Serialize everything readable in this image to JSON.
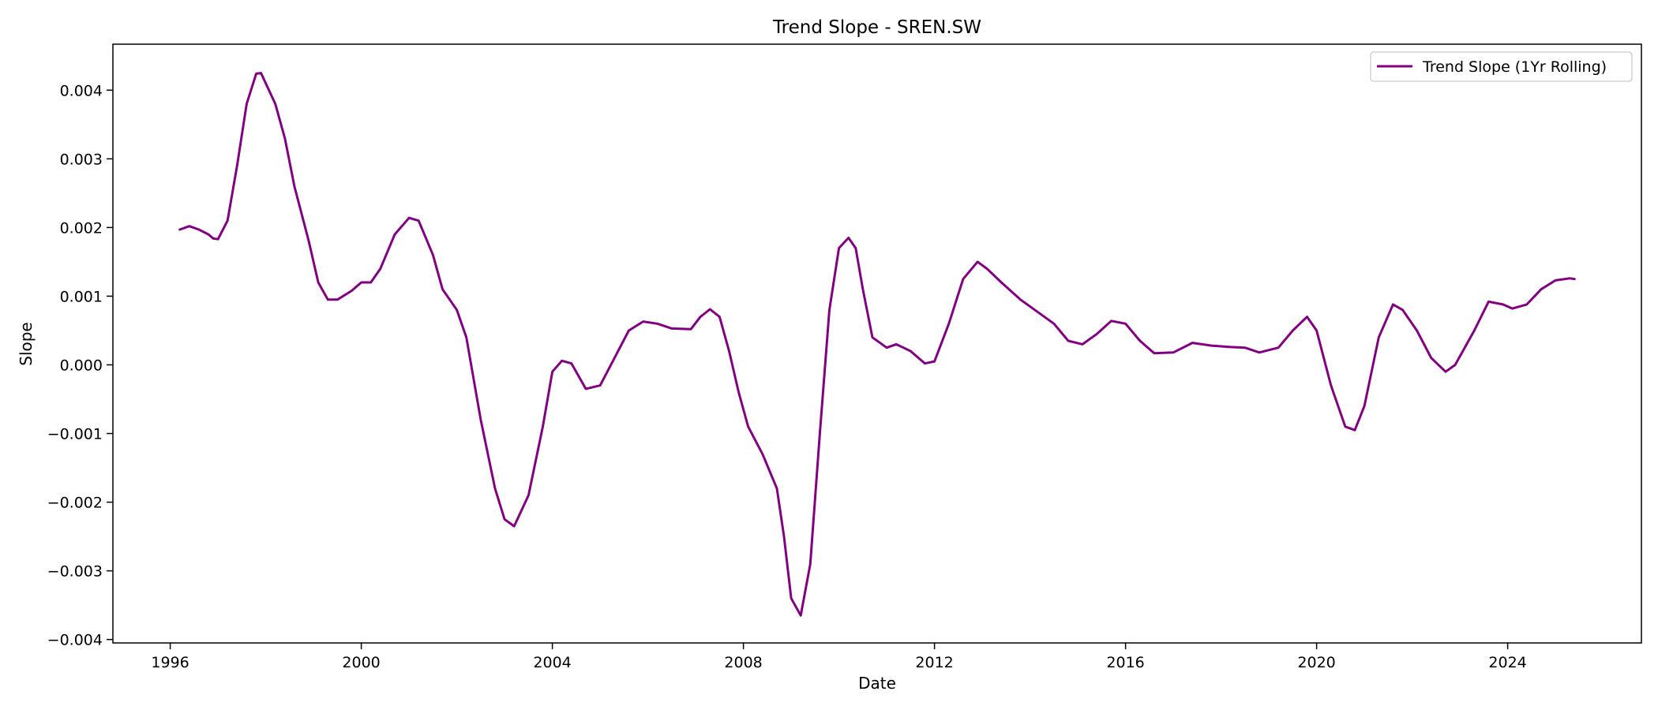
{
  "chart_data": {
    "type": "line",
    "title": "Trend Slope - SREN.SW",
    "xlabel": "Date",
    "ylabel": "Slope",
    "xlim": [
      1994.8,
      2026.8
    ],
    "ylim": [
      -0.00405,
      0.00467
    ],
    "x_ticks": [
      1996,
      2000,
      2004,
      2008,
      2012,
      2016,
      2020,
      2024
    ],
    "x_tick_labels": [
      "1996",
      "2000",
      "2004",
      "2008",
      "2012",
      "2016",
      "2020",
      "2024"
    ],
    "y_ticks": [
      -0.004,
      -0.003,
      -0.002,
      -0.001,
      0.0,
      0.001,
      0.002,
      0.003,
      0.004
    ],
    "y_tick_labels": [
      "−0.004",
      "−0.003",
      "−0.002",
      "−0.001",
      "0.000",
      "0.001",
      "0.002",
      "0.003",
      "0.004"
    ],
    "grid": false,
    "legend_position": "top-right",
    "series": [
      {
        "name": "Trend Slope (1Yr Rolling)",
        "color": "#800080",
        "points": [
          [
            1996.2,
            0.00197
          ],
          [
            1996.4,
            0.00202
          ],
          [
            1996.6,
            0.00197
          ],
          [
            1996.8,
            0.0019
          ],
          [
            1996.9,
            0.00184
          ],
          [
            1997.0,
            0.00183
          ],
          [
            1997.2,
            0.0021
          ],
          [
            1997.4,
            0.0029
          ],
          [
            1997.6,
            0.0038
          ],
          [
            1997.8,
            0.00424
          ],
          [
            1997.9,
            0.00425
          ],
          [
            1998.0,
            0.0041
          ],
          [
            1998.2,
            0.0038
          ],
          [
            1998.4,
            0.0033
          ],
          [
            1998.6,
            0.0026
          ],
          [
            1998.9,
            0.0018
          ],
          [
            1999.1,
            0.0012
          ],
          [
            1999.3,
            0.00095
          ],
          [
            1999.5,
            0.00095
          ],
          [
            1999.8,
            0.00108
          ],
          [
            2000.0,
            0.0012
          ],
          [
            2000.2,
            0.0012
          ],
          [
            2000.4,
            0.0014
          ],
          [
            2000.7,
            0.0019
          ],
          [
            2001.0,
            0.00214
          ],
          [
            2001.2,
            0.0021
          ],
          [
            2001.5,
            0.0016
          ],
          [
            2001.7,
            0.0011
          ],
          [
            2002.0,
            0.0008
          ],
          [
            2002.2,
            0.0004
          ],
          [
            2002.5,
            -0.0008
          ],
          [
            2002.8,
            -0.0018
          ],
          [
            2003.0,
            -0.00225
          ],
          [
            2003.2,
            -0.00235
          ],
          [
            2003.5,
            -0.0019
          ],
          [
            2003.8,
            -0.0009
          ],
          [
            2004.0,
            -0.0001
          ],
          [
            2004.2,
            6e-05
          ],
          [
            2004.4,
            2e-05
          ],
          [
            2004.7,
            -0.00035
          ],
          [
            2005.0,
            -0.0003
          ],
          [
            2005.3,
            0.0001
          ],
          [
            2005.6,
            0.0005
          ],
          [
            2005.9,
            0.00063
          ],
          [
            2006.2,
            0.0006
          ],
          [
            2006.5,
            0.00053
          ],
          [
            2006.9,
            0.00052
          ],
          [
            2007.1,
            0.0007
          ],
          [
            2007.3,
            0.00081
          ],
          [
            2007.5,
            0.0007
          ],
          [
            2007.7,
            0.0002
          ],
          [
            2007.9,
            -0.0004
          ],
          [
            2008.1,
            -0.0009
          ],
          [
            2008.4,
            -0.0013
          ],
          [
            2008.7,
            -0.0018
          ],
          [
            2008.85,
            -0.0025
          ],
          [
            2009.0,
            -0.0034
          ],
          [
            2009.2,
            -0.00365
          ],
          [
            2009.4,
            -0.0029
          ],
          [
            2009.6,
            -0.001
          ],
          [
            2009.8,
            0.0008
          ],
          [
            2010.0,
            0.0017
          ],
          [
            2010.2,
            0.00185
          ],
          [
            2010.35,
            0.0017
          ],
          [
            2010.5,
            0.0011
          ],
          [
            2010.7,
            0.0004
          ],
          [
            2011.0,
            0.00025
          ],
          [
            2011.2,
            0.0003
          ],
          [
            2011.5,
            0.0002
          ],
          [
            2011.8,
            2e-05
          ],
          [
            2012.0,
            5e-05
          ],
          [
            2012.3,
            0.0006
          ],
          [
            2012.6,
            0.00125
          ],
          [
            2012.9,
            0.0015
          ],
          [
            2013.1,
            0.0014
          ],
          [
            2013.4,
            0.0012
          ],
          [
            2013.8,
            0.00095
          ],
          [
            2014.2,
            0.00075
          ],
          [
            2014.5,
            0.0006
          ],
          [
            2014.8,
            0.00035
          ],
          [
            2015.1,
            0.0003
          ],
          [
            2015.4,
            0.00045
          ],
          [
            2015.7,
            0.00064
          ],
          [
            2016.0,
            0.0006
          ],
          [
            2016.3,
            0.00035
          ],
          [
            2016.6,
            0.00017
          ],
          [
            2017.0,
            0.00018
          ],
          [
            2017.4,
            0.00032
          ],
          [
            2017.8,
            0.00028
          ],
          [
            2018.2,
            0.00026
          ],
          [
            2018.5,
            0.00025
          ],
          [
            2018.8,
            0.00018
          ],
          [
            2019.2,
            0.00025
          ],
          [
            2019.5,
            0.0005
          ],
          [
            2019.8,
            0.0007
          ],
          [
            2020.0,
            0.0005
          ],
          [
            2020.3,
            -0.0003
          ],
          [
            2020.6,
            -0.0009
          ],
          [
            2020.8,
            -0.00095
          ],
          [
            2021.0,
            -0.0006
          ],
          [
            2021.3,
            0.0004
          ],
          [
            2021.6,
            0.00088
          ],
          [
            2021.8,
            0.0008
          ],
          [
            2022.1,
            0.0005
          ],
          [
            2022.4,
            0.0001
          ],
          [
            2022.7,
            -0.0001
          ],
          [
            2022.9,
            0.0
          ],
          [
            2023.3,
            0.0005
          ],
          [
            2023.6,
            0.00092
          ],
          [
            2023.9,
            0.00088
          ],
          [
            2024.1,
            0.00082
          ],
          [
            2024.4,
            0.00088
          ],
          [
            2024.7,
            0.0011
          ],
          [
            2025.0,
            0.00123
          ],
          [
            2025.3,
            0.00126
          ],
          [
            2025.4,
            0.00125
          ]
        ]
      }
    ]
  }
}
